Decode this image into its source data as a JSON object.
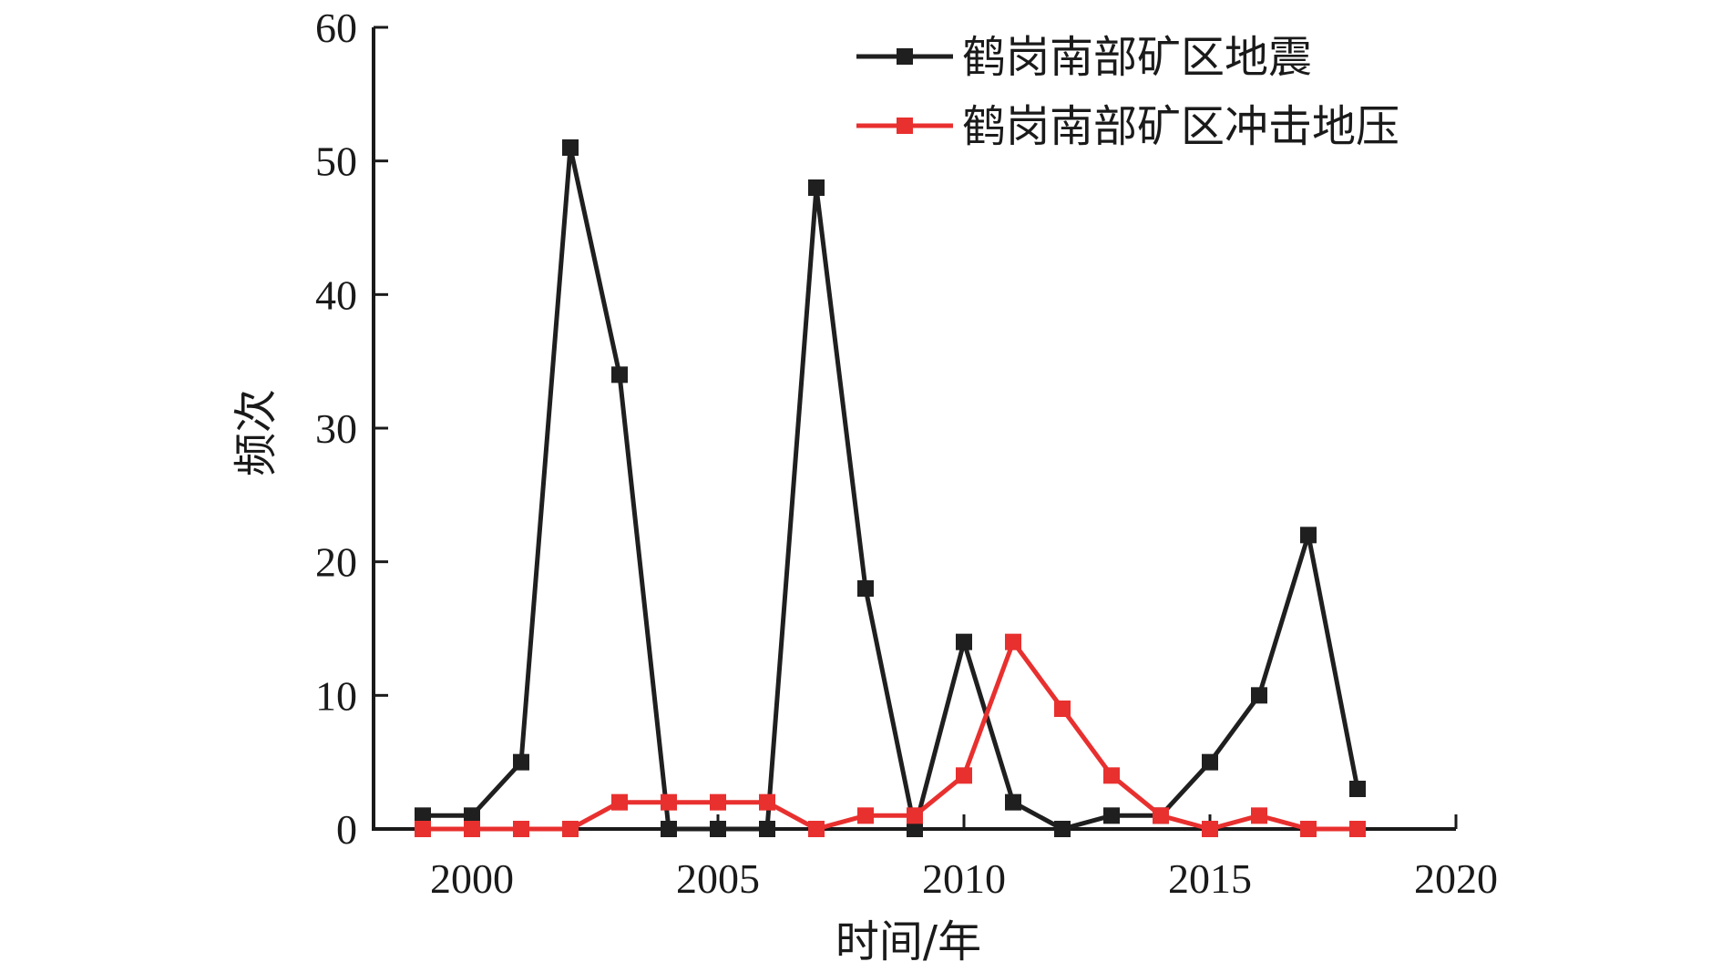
{
  "chart_data": {
    "type": "line",
    "title": "",
    "xlabel": "时间/年",
    "ylabel": "频次",
    "xlim": [
      1998,
      2020
    ],
    "ylim": [
      0,
      60
    ],
    "xticks": [
      2000,
      2005,
      2010,
      2015,
      2020
    ],
    "yticks": [
      0,
      10,
      20,
      30,
      40,
      50,
      60
    ],
    "grid": false,
    "legend_position": "top-right",
    "x": [
      1999,
      2000,
      2001,
      2002,
      2003,
      2004,
      2005,
      2006,
      2007,
      2008,
      2009,
      2010,
      2011,
      2012,
      2013,
      2014,
      2015,
      2016,
      2017,
      2018
    ],
    "series": [
      {
        "name": "鹤岗南部矿区地震",
        "color": "#1f1f1f",
        "marker": "square",
        "values": [
          1,
          1,
          5,
          51,
          34,
          0,
          0,
          0,
          48,
          18,
          0,
          14,
          2,
          0,
          1,
          1,
          5,
          10,
          22,
          3
        ]
      },
      {
        "name": "鹤岗南部矿区冲击地压",
        "color": "#e8302f",
        "marker": "square",
        "values": [
          0,
          0,
          0,
          0,
          2,
          2,
          2,
          2,
          0,
          1,
          1,
          4,
          14,
          9,
          4,
          1,
          0,
          1,
          0,
          0
        ]
      }
    ]
  }
}
